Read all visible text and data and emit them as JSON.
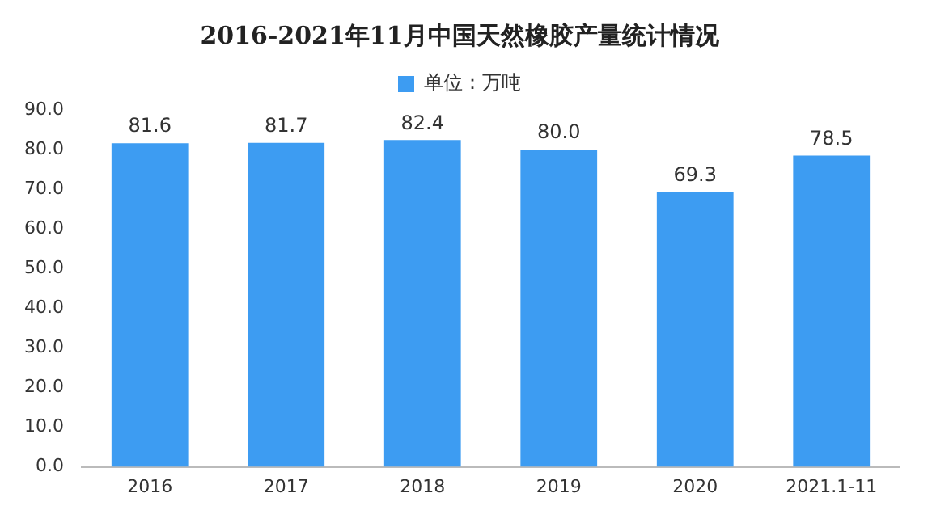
{
  "chart_data": {
    "type": "bar",
    "title": "2016-2021年11月中国天然橡胶产量统计情况",
    "categories": [
      "2016",
      "2017",
      "2018",
      "2019",
      "2020",
      "2021.1-11"
    ],
    "series": [
      {
        "name": "单位：万吨",
        "color": "#3d9cf2",
        "values": [
          81.6,
          81.7,
          82.4,
          80.0,
          69.3,
          78.5
        ],
        "value_labels": [
          "81.6",
          "81.7",
          "82.4",
          "80.0",
          "69.3",
          "78.5"
        ]
      }
    ],
    "ylim": [
      0,
      90
    ],
    "yticks": [
      {
        "value": 0,
        "label": "0.0"
      },
      {
        "value": 10,
        "label": "10.0"
      },
      {
        "value": 20,
        "label": "20.0"
      },
      {
        "value": 30,
        "label": "30.0"
      },
      {
        "value": 40,
        "label": "40.0"
      },
      {
        "value": 50,
        "label": "50.0"
      },
      {
        "value": 60,
        "label": "60.0"
      },
      {
        "value": 70,
        "label": "70.0"
      },
      {
        "value": 80,
        "label": "80.0"
      },
      {
        "value": 90,
        "label": "90.0"
      }
    ],
    "grid": false,
    "legend": "top"
  }
}
